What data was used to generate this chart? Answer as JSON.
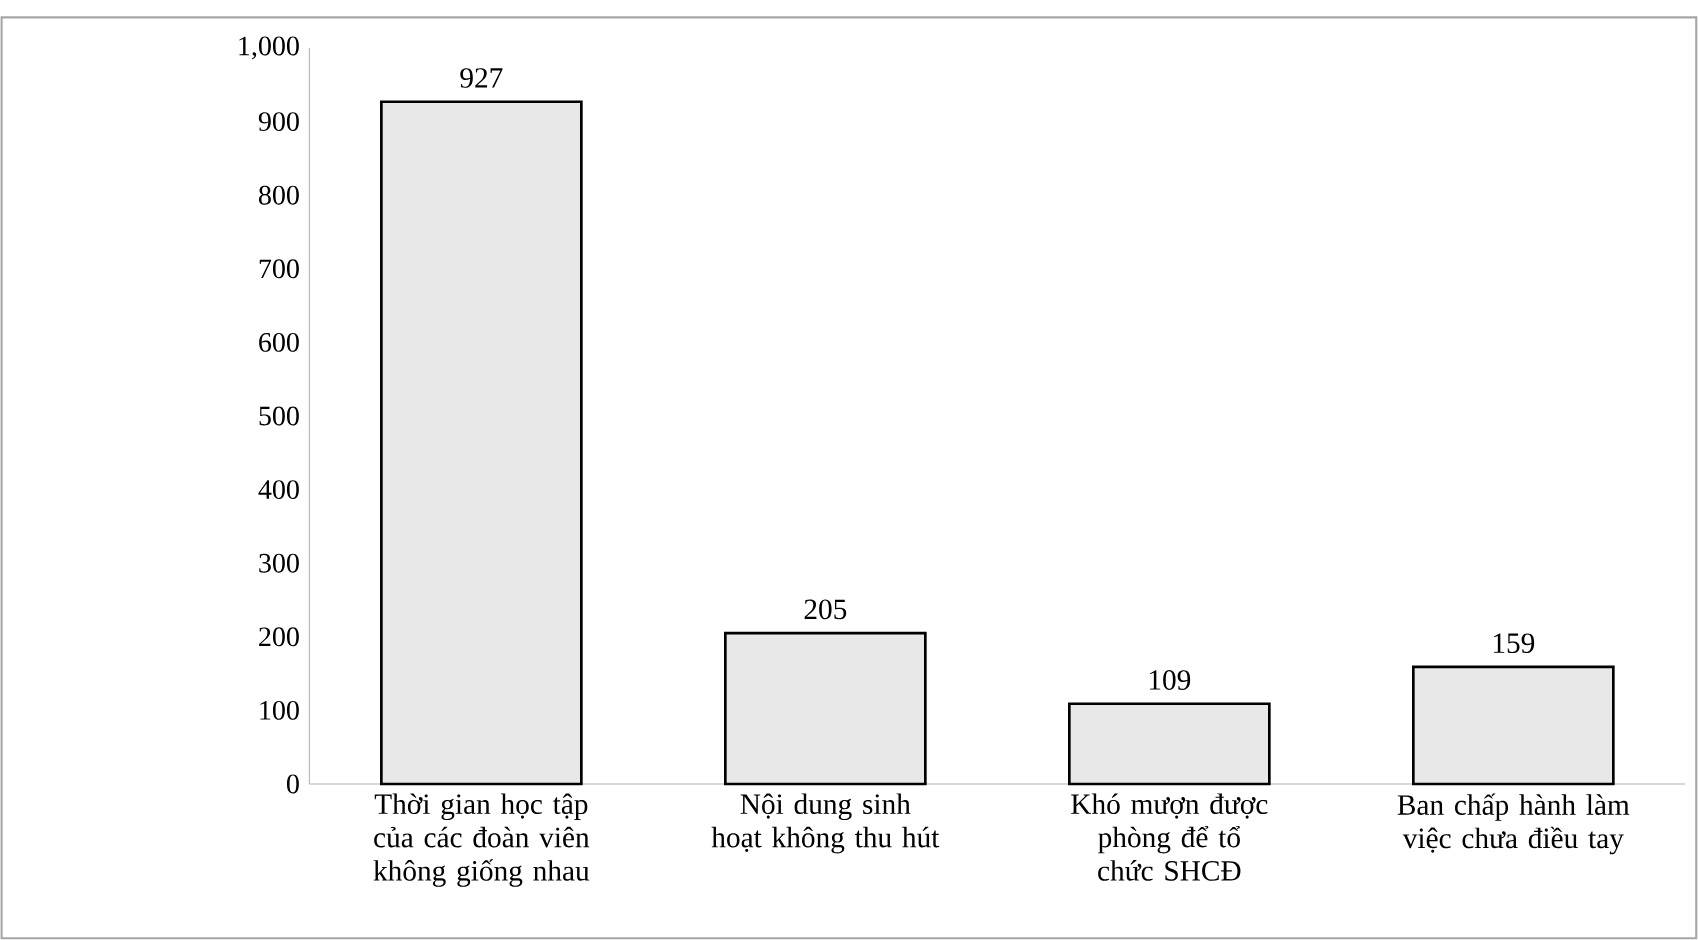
{
  "chart_data": {
    "type": "bar",
    "categories": [
      "Thời gian học tập của các đoàn viên không giống nhau",
      "Nội dung sinh hoạt không thu hút",
      "Khó mượn được phòng để tổ chức SHCĐ",
      "Ban chấp hành làm việc chưa điều tay"
    ],
    "values": [
      927,
      205,
      109,
      159
    ],
    "color": "#e8e8e8",
    "ylim": [
      0,
      1000
    ],
    "yticks": [
      0,
      100,
      200,
      300,
      400,
      500,
      600,
      700,
      800,
      900,
      {
        "value": 1000,
        "label": "1,000"
      }
    ],
    "data_labels": true
  }
}
